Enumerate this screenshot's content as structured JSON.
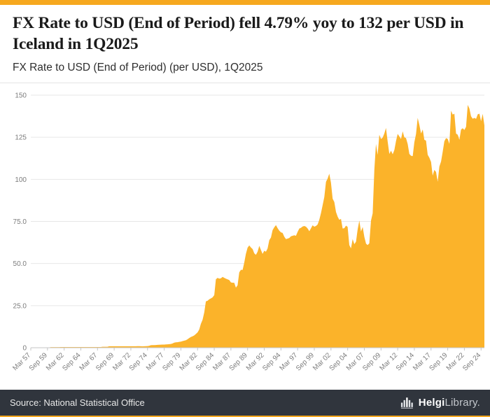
{
  "header": {
    "title": "FX Rate to USD (End of Period) fell 4.79% yoy to 132 per USD in Iceland in 1Q2025",
    "subtitle": "FX Rate to USD (End of Period) (per USD), 1Q2025"
  },
  "footer": {
    "source": "Source: National Statistical Office",
    "logo_bold": "Helgi",
    "logo_rest": "Library."
  },
  "colors": {
    "accent_bar": "#F6A81F",
    "area_fill": "#FBB32A",
    "footer_bg": "#30353D",
    "grid_line": "#e7e7e7",
    "axis_line": "#c6c6c6",
    "axis_text": "#7c7c7c",
    "title_text": "#1a1a1a",
    "subtitle_text": "#2e2e2e",
    "source_text": "#e9e9e9",
    "logo_secondary": "#c3c7cc"
  },
  "chart_data": {
    "type": "area",
    "title": "FX Rate to USD (End of Period) (per USD), 1Q2025",
    "ylabel": "per USD",
    "xlabel": "",
    "ylim": [
      0,
      150
    ],
    "grid": true,
    "legend": false,
    "frequency": "quarterly",
    "x_start": "Mar 1957",
    "x_end": "Mar 2025",
    "yticks": [
      0,
      25,
      50,
      75,
      100,
      125,
      150
    ],
    "ytick_labels": [
      "0",
      "25.0",
      "50.0",
      "75.0",
      "100",
      "125",
      "150"
    ],
    "xtick_step": 10,
    "xtick_labels": [
      "Mar 57",
      "Sep 59",
      "Mar 62",
      "Sep 64",
      "Mar 67",
      "Sep 69",
      "Mar 72",
      "Sep 74",
      "Mar 77",
      "Sep 79",
      "Mar 82",
      "Sep 84",
      "Mar 87",
      "Sep 89",
      "Mar 92",
      "Sep 94",
      "Mar 97",
      "Sep 99",
      "Mar 02",
      "Sep 04",
      "Mar 07",
      "Sep 09",
      "Mar 12",
      "Sep 14",
      "Mar 17",
      "Sep 19",
      "Mar 22",
      "Sep 24"
    ],
    "values": [
      0.16,
      0.16,
      0.16,
      0.16,
      0.16,
      0.16,
      0.16,
      0.16,
      0.16,
      0.16,
      0.16,
      0.16,
      0.38,
      0.38,
      0.38,
      0.38,
      0.38,
      0.38,
      0.43,
      0.43,
      0.43,
      0.43,
      0.43,
      0.43,
      0.43,
      0.43,
      0.43,
      0.43,
      0.43,
      0.43,
      0.43,
      0.43,
      0.43,
      0.43,
      0.43,
      0.43,
      0.43,
      0.43,
      0.43,
      0.43,
      0.43,
      0.43,
      0.43,
      0.57,
      0.57,
      0.57,
      0.57,
      0.88,
      0.88,
      0.88,
      0.88,
      0.88,
      0.88,
      0.88,
      0.88,
      0.88,
      0.88,
      0.88,
      0.88,
      0.87,
      0.88,
      0.88,
      0.88,
      0.88,
      0.9,
      0.9,
      0.86,
      0.84,
      0.86,
      0.9,
      0.98,
      1.18,
      1.49,
      1.53,
      1.58,
      1.64,
      1.7,
      1.75,
      1.82,
      1.89,
      1.89,
      1.95,
      2.05,
      2.13,
      2.24,
      2.54,
      3.02,
      3.18,
      3.3,
      3.47,
      3.66,
      3.94,
      4.18,
      4.48,
      5.02,
      5.78,
      6.4,
      6.8,
      7.3,
      8.2,
      9.1,
      10.8,
      14.2,
      16.6,
      21.0,
      27.5,
      27.9,
      28.8,
      29.3,
      29.9,
      31.3,
      40.6,
      41.5,
      41.0,
      41.2,
      42.1,
      41.5,
      41.0,
      40.6,
      40.2,
      38.8,
      38.6,
      38.6,
      35.7,
      37.1,
      44.8,
      46.3,
      46.2,
      50.5,
      55.8,
      59.4,
      60.8,
      59.5,
      58.6,
      56.1,
      55.2,
      57.0,
      60.5,
      58.0,
      55.7,
      57.6,
      57.0,
      59.0,
      63.9,
      65.5,
      69.8,
      71.5,
      72.8,
      71.0,
      69.5,
      68.5,
      68.2,
      66.0,
      64.5,
      64.8,
      65.2,
      66.2,
      66.5,
      66.8,
      66.5,
      68.8,
      70.8,
      71.2,
      72.0,
      72.3,
      71.9,
      70.8,
      69.2,
      70.9,
      72.7,
      71.9,
      72.3,
      73.2,
      75.9,
      79.9,
      84.7,
      89.5,
      98.5,
      100.5,
      103.4,
      98.0,
      88.5,
      86.5,
      80.6,
      77.8,
      76.0,
      76.5,
      70.8,
      71.0,
      72.5,
      71.8,
      61.0,
      59.0,
      64.5,
      61.5,
      63.0,
      70.2,
      75.5,
      69.0,
      71.7,
      65.8,
      61.8,
      61.0,
      62.0,
      75.5,
      79.8,
      105.8,
      121.0,
      114.5,
      126.5,
      124.0,
      124.8,
      127.3,
      130.5,
      122.5,
      115.1,
      117.0,
      114.9,
      117.5,
      122.7,
      127.0,
      125.5,
      124.0,
      128.5,
      125.0,
      124.5,
      121.0,
      115.1,
      114.0,
      113.8,
      122.0,
      126.9,
      136.5,
      132.3,
      127.2,
      129.6,
      123.5,
      123.0,
      114.6,
      112.8,
      110.3,
      102.2,
      105.6,
      104.4,
      98.6,
      107.6,
      110.6,
      116.3,
      122.6,
      124.5,
      124.0,
      121.1,
      140.8,
      138.5,
      139.0,
      127.2,
      126.5,
      123.5,
      129.5,
      130.4,
      129.3,
      131.2,
      144.2,
      142.0,
      137.5,
      136.0,
      136.5,
      135.9,
      138.6,
      139.0,
      134.5,
      138.9,
      132.0
    ]
  }
}
